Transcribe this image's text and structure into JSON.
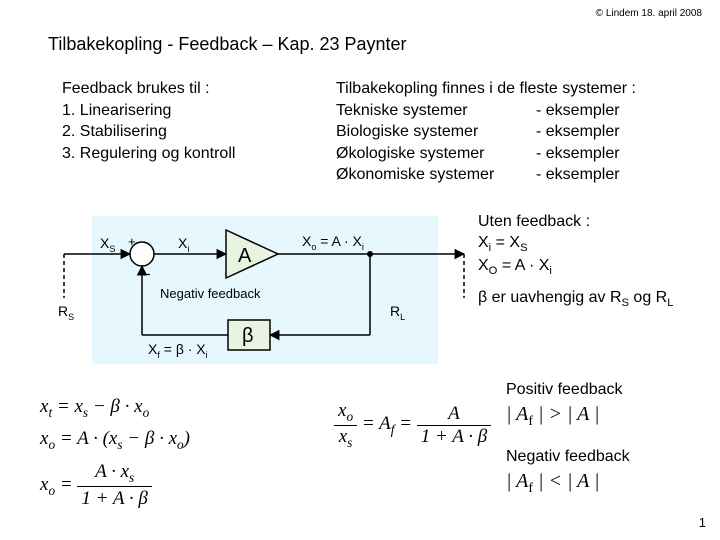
{
  "copyright": "© Lindem 18. april  2008",
  "title": "Tilbakekopling - Feedback  – Kap. 23 Paynter",
  "left": {
    "header": "Feedback brukes til :",
    "items": [
      "1.  Linearisering",
      "2.  Stabilisering",
      "3.  Regulering og kontroll"
    ]
  },
  "right": {
    "header": "Tilbakekopling finnes i de fleste systemer :",
    "rows": [
      [
        "Tekniske systemer",
        "- eksempler"
      ],
      [
        "Biologiske systemer",
        "- eksempler"
      ],
      [
        "Økologiske systemer",
        "- eksempler"
      ],
      [
        "Økonomiske systemer",
        "- eksempler"
      ]
    ]
  },
  "notes": {
    "line1": "Uten feedback :",
    "line2_html": "X<sub>i</sub> = X<sub>S</sub>",
    "line3_html": "X<sub>O</sub> = A · X<sub>i</sub>",
    "line4": "β er uavhengig av R",
    "line4_s": "S",
    "line4_mid": " og R",
    "line4_l": "L"
  },
  "diagram": {
    "bg": "#e6f7fd",
    "border": "#000000",
    "blockfill": "#e8f4e0",
    "labels": {
      "A": "A",
      "beta": "β",
      "XS": "X",
      "XSsub": "S",
      "Xi": "X",
      "Xisub": "i",
      "Xo": "X",
      "Xosub": "o",
      "Xo_eq": " = A · X",
      "Xo_eq_sub": "i",
      "RS": "R",
      "RSsub": "S",
      "RL": "R",
      "RLsub": "L",
      "Xf": "X",
      "Xfsub": "f",
      "Xf_eq": " = β · X",
      "Xf_eq_sub": "i",
      "neg": "Negativ feedback",
      "plus": "+",
      "minus": "-"
    }
  },
  "eq": {
    "l1": "x<sub>t</sub> = x<sub>s</sub> − β · x<sub>o</sub>",
    "l2": "x<sub>o</sub> = A · (x<sub>s</sub> − β · x<sub>o</sub>)",
    "l3_lhs": "x<sub>o</sub> = ",
    "l3_num": "A · x<sub>s</sub>",
    "l3_den": "1 + A · β",
    "af_lhs": "= A<sub>f</sub> = ",
    "af_num": "x<sub>o</sub>",
    "af_den": "x<sub>s</sub>",
    "af_num2": "A",
    "af_den2": "1 + A · β"
  },
  "fb": {
    "pos_h": "Positiv feedback",
    "pos_eq": "| A<sub>f</sub> | > | A |",
    "neg_h": "Negativ feedback",
    "neg_eq": "| A<sub>f</sub> | < | A |"
  },
  "pagenum": "1",
  "colors": {
    "text": "#000000",
    "bg": "#ffffff"
  }
}
